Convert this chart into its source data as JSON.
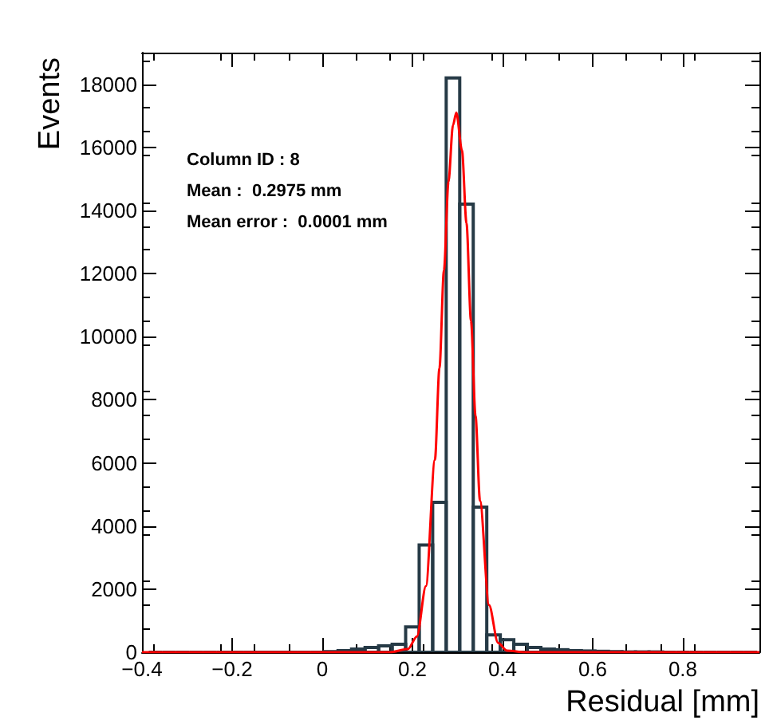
{
  "chart_data": {
    "type": "histogram",
    "xlabel": "Residual [mm]",
    "ylabel": "Events",
    "annotations": [
      "Column ID : 8",
      "Mean :  0.2975 mm",
      "Mean error :  0.0001 mm"
    ],
    "bins": [
      -0.385,
      -0.355,
      -0.325,
      -0.295,
      -0.265,
      -0.235,
      -0.205,
      -0.175,
      -0.145,
      -0.115,
      -0.085,
      -0.055,
      -0.025,
      0.005,
      0.035,
      0.065,
      0.095,
      0.125,
      0.155,
      0.185,
      0.215,
      0.245,
      0.275,
      0.305,
      0.335,
      0.365,
      0.395,
      0.425,
      0.455,
      0.485,
      0.515,
      0.545,
      0.575,
      0.605,
      0.635,
      0.665,
      0.695,
      0.725,
      0.755,
      0.785,
      0.815,
      0.845,
      0.875,
      0.905,
      0.935,
      0.965
    ],
    "values": [
      0,
      0,
      0,
      0,
      0,
      0,
      0,
      0,
      0,
      0,
      0,
      0,
      0,
      20,
      50,
      100,
      150,
      200,
      250,
      800,
      3400,
      4750,
      18200,
      14200,
      4600,
      550,
      400,
      250,
      150,
      100,
      80,
      50,
      40,
      30,
      20,
      10,
      10,
      10,
      0,
      0,
      0,
      0,
      0,
      0,
      0
    ],
    "color": "#263a46",
    "series": [
      {
        "type": "line",
        "color": "#ff0000",
        "x": [
          -0.4,
          0.15,
          0.19,
          0.21,
          0.23,
          0.25,
          0.26,
          0.27,
          0.28,
          0.29,
          0.2975,
          0.31,
          0.32,
          0.33,
          0.34,
          0.35,
          0.37,
          0.39,
          0.41,
          0.45,
          0.97
        ],
        "values": [
          0,
          0,
          100,
          500,
          2100,
          6100,
          9000,
          12100,
          14900,
          16700,
          17100,
          15900,
          13600,
          10500,
          7500,
          4800,
          1500,
          300,
          50,
          0,
          0
        ]
      }
    ],
    "xlim": [
      -0.4,
      0.97
    ],
    "xticks": [
      -0.4,
      -0.2,
      0,
      0.2,
      0.4,
      0.6,
      0.8
    ],
    "ylim": [
      0,
      19000
    ],
    "yticks": [
      0,
      2000,
      4000,
      6000,
      8000,
      10000,
      12000,
      14000,
      16000,
      18000
    ],
    "grid": false
  }
}
